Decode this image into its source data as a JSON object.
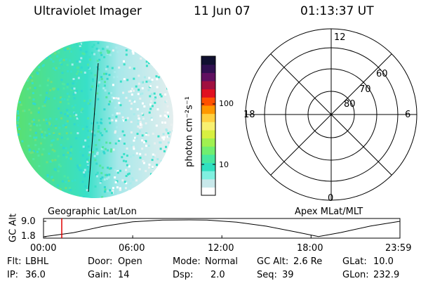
{
  "header": {
    "instrument": "Ultraviolet Imager",
    "date": "11 Jun 07",
    "time": "01:13:37 UT"
  },
  "colorbar": {
    "unit_label": "photon cm⁻²s⁻¹",
    "ticks": [
      "100",
      "10"
    ],
    "colors": [
      "#ffffff",
      "#c8e8ea",
      "#80f0e0",
      "#30e0c0",
      "#48e8a0",
      "#70ee70",
      "#a0f050",
      "#d8f040",
      "#f8f070",
      "#ffd040",
      "#ff9800",
      "#ff5000",
      "#e01020",
      "#a01040",
      "#601060",
      "#301050",
      "#101030"
    ]
  },
  "polar_grid": {
    "hour_labels": [
      "12",
      "18",
      "6",
      "0"
    ],
    "lat_labels": [
      "60",
      "70",
      "80"
    ]
  },
  "timeline": {
    "axis_title": "GC Alt",
    "left_label": "Geographic Lat/Lon",
    "right_label": "Apex MLat/MLT",
    "y_ticks": [
      "9.0",
      "1.8"
    ],
    "x_ticks": [
      "00:00",
      "06:00",
      "12:00",
      "18:00",
      "23:59"
    ],
    "marker_color": "#e00000"
  },
  "chart_data": {
    "type": "line",
    "title": "",
    "xlabel": "",
    "ylabel": "GC Alt",
    "xlim": [
      0,
      23.98
    ],
    "ylim": [
      1.8,
      9.0
    ],
    "x": [
      0.0,
      2.0,
      4.0,
      6.0,
      8.0,
      9.8,
      11.0,
      13.0,
      15.0,
      17.0,
      18.5,
      20.0,
      22.0,
      23.98
    ],
    "values": [
      1.8,
      3.5,
      6.2,
      8.2,
      8.9,
      9.0,
      8.9,
      8.0,
      6.3,
      3.8,
      1.9,
      3.6,
      6.4,
      8.4
    ],
    "current_time": 1.227
  },
  "status": {
    "flt_label": "Flt:",
    "flt_value": "LBHL",
    "door_label": "Door:",
    "door_value": "Open",
    "mode_label": "Mode:",
    "mode_value": "Normal",
    "gcalt_label": "GC Alt:",
    "gcalt_value": "2.6 Re",
    "glat_label": "GLat:",
    "glat_value": "10.0",
    "ip_label": "IP:",
    "ip_value": "36.0",
    "gain_label": "Gain:",
    "gain_value": "14",
    "dsp_label": "Dsp:",
    "dsp_value": "2.0",
    "seq_label": "Seq:",
    "seq_value": "39",
    "glon_label": "GLon:",
    "glon_value": "232.9"
  }
}
